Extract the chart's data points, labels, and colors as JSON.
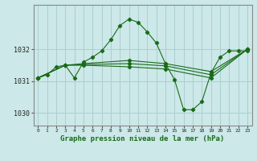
{
  "xlabel": "Graphe pression niveau de la mer (hPa)",
  "bg_color": "#cce8e8",
  "grid_color": "#aacfcf",
  "line_color": "#1a6b1a",
  "xlim": [
    -0.5,
    23.5
  ],
  "ylim": [
    1029.6,
    1033.4
  ],
  "yticks": [
    1030,
    1031,
    1032
  ],
  "xticks": [
    0,
    1,
    2,
    3,
    4,
    5,
    6,
    7,
    8,
    9,
    10,
    11,
    12,
    13,
    14,
    15,
    16,
    17,
    18,
    19,
    20,
    21,
    22,
    23
  ],
  "series1": [
    [
      0,
      1031.1
    ],
    [
      1,
      1031.2
    ],
    [
      2,
      1031.45
    ],
    [
      3,
      1031.5
    ],
    [
      4,
      1031.1
    ],
    [
      5,
      1031.6
    ],
    [
      6,
      1031.75
    ],
    [
      7,
      1031.95
    ],
    [
      8,
      1032.3
    ],
    [
      9,
      1032.75
    ],
    [
      10,
      1032.95
    ],
    [
      11,
      1032.85
    ],
    [
      12,
      1032.55
    ],
    [
      13,
      1032.2
    ],
    [
      14,
      1031.55
    ],
    [
      15,
      1031.05
    ],
    [
      16,
      1030.1
    ],
    [
      17,
      1030.1
    ],
    [
      18,
      1030.35
    ],
    [
      19,
      1031.25
    ],
    [
      20,
      1031.75
    ],
    [
      21,
      1031.95
    ],
    [
      22,
      1031.95
    ],
    [
      23,
      1031.95
    ]
  ],
  "series2": [
    [
      0,
      1031.1
    ],
    [
      3,
      1031.5
    ],
    [
      5,
      1031.55
    ],
    [
      10,
      1031.65
    ],
    [
      14,
      1031.55
    ],
    [
      19,
      1031.3
    ],
    [
      23,
      1032.0
    ]
  ],
  "series3": [
    [
      0,
      1031.1
    ],
    [
      3,
      1031.5
    ],
    [
      5,
      1031.52
    ],
    [
      10,
      1031.55
    ],
    [
      14,
      1031.48
    ],
    [
      19,
      1031.2
    ],
    [
      23,
      1032.0
    ]
  ],
  "series4": [
    [
      0,
      1031.1
    ],
    [
      3,
      1031.5
    ],
    [
      5,
      1031.5
    ],
    [
      10,
      1031.45
    ],
    [
      14,
      1031.38
    ],
    [
      19,
      1031.1
    ],
    [
      23,
      1032.0
    ]
  ]
}
